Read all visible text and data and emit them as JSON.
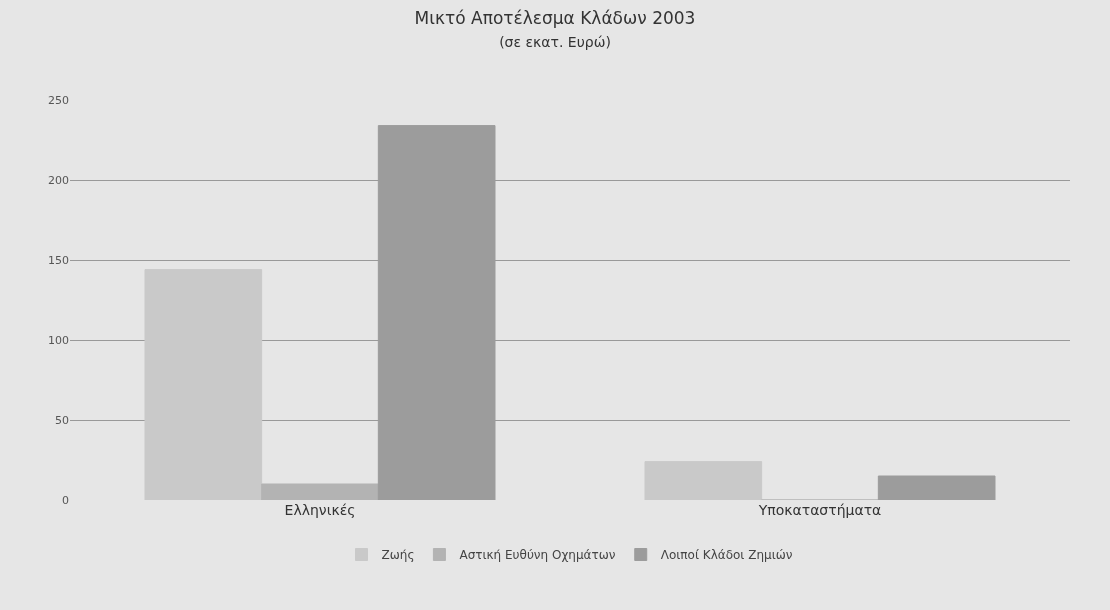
{
  "chart_data": {
    "type": "bar",
    "title": "Μικτό Αποτέλεσμα Κλάδων 2003",
    "subtitle": "(σε εκατ. Ευρώ)",
    "categories": [
      "Ελληνικές",
      "Υποκαταστήματα"
    ],
    "series": [
      {
        "name": "Ζωής",
        "color": "#c9c9c9",
        "values": [
          144,
          24
        ]
      },
      {
        "name": "Αστική Ευθύνη Οχημάτων",
        "color": "#b3b3b3",
        "values": [
          10,
          0
        ]
      },
      {
        "name": "Λοιποί Κλάδοι Ζημιών",
        "color": "#9c9c9c",
        "values": [
          234,
          15
        ]
      }
    ],
    "ylim": [
      0,
      250
    ],
    "yticks": [
      0,
      50,
      100,
      150,
      200,
      250
    ],
    "grid": "y",
    "legend": "bottom"
  }
}
